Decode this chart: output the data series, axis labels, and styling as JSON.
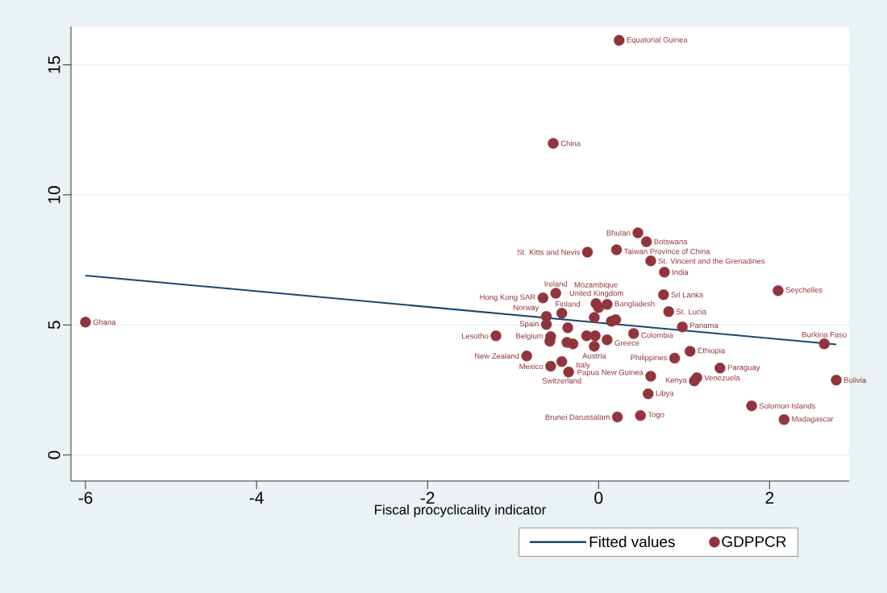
{
  "chart_data": {
    "type": "scatter",
    "xlabel": "Fiscal procyclicality indicator",
    "xlim": [
      -6.17,
      2.93
    ],
    "ylim": [
      -1,
      16.47
    ],
    "xticks": [
      -6,
      -4,
      -2,
      0,
      2
    ],
    "yticks": [
      0,
      5,
      10,
      15
    ],
    "grid": "y",
    "legend": "bottom",
    "series": [
      {
        "name": "Fitted values",
        "type": "line",
        "color": "#1a476f",
        "x": [
          -6.0,
          2.78
        ],
        "values": [
          6.9,
          4.25
        ]
      },
      {
        "name": "GDPPCR",
        "marker": "circle",
        "color": "#90353b",
        "x": [
          0.24,
          -0.53,
          -6.0,
          0.46,
          0.56,
          0.21,
          -0.13,
          0.61,
          0.77,
          2.1,
          0.76,
          -0.5,
          -0.65,
          -0.03,
          0.1,
          0.0,
          0.82,
          -0.43,
          -0.61,
          -0.61,
          -0.05,
          0.15,
          0.2,
          -0.36,
          0.98,
          2.64,
          -1.2,
          -0.56,
          0.41,
          -0.14,
          -0.04,
          0.1,
          -0.57,
          -0.37,
          -0.3,
          -0.05,
          1.07,
          -0.84,
          0.89,
          -0.43,
          -0.56,
          -0.35,
          1.42,
          0.61,
          1.15,
          1.12,
          2.78,
          0.58,
          1.79,
          0.49,
          0.22,
          2.17
        ],
        "values": [
          15.94,
          11.98,
          5.11,
          8.54,
          8.2,
          7.89,
          7.8,
          7.46,
          7.03,
          6.32,
          6.16,
          6.22,
          6.04,
          5.82,
          5.79,
          5.67,
          5.51,
          5.45,
          5.33,
          5.02,
          5.29,
          5.14,
          5.2,
          4.89,
          4.92,
          4.27,
          4.58,
          4.55,
          4.67,
          4.58,
          4.58,
          4.43,
          4.37,
          4.33,
          4.27,
          4.18,
          3.99,
          3.81,
          3.72,
          3.59,
          3.41,
          3.19,
          3.34,
          3.03,
          2.97,
          2.85,
          2.88,
          2.35,
          1.89,
          1.52,
          1.46,
          1.36
        ]
      }
    ],
    "annotations": [
      {
        "text": "Equatorial Guinea",
        "x": 0.24,
        "y": 15.94
      },
      {
        "text": "China",
        "x": -0.53,
        "y": 11.98
      },
      {
        "text": "Ghana",
        "x": -6.0,
        "y": 5.11
      },
      {
        "text": "Bhutan",
        "x": 0.46,
        "y": 8.54
      },
      {
        "text": "Botswana",
        "x": 0.56,
        "y": 8.2
      },
      {
        "text": "Taiwan Province of China",
        "x": 0.21,
        "y": 7.89
      },
      {
        "text": "St. Kitts and Nevis",
        "x": -0.13,
        "y": 7.8
      },
      {
        "text": "St. Vincent and the Grenadines",
        "x": 0.61,
        "y": 7.46
      },
      {
        "text": "India",
        "x": 0.77,
        "y": 7.03
      },
      {
        "text": "Seychelles",
        "x": 2.1,
        "y": 6.32
      },
      {
        "text": "Sri Lanka",
        "x": 0.76,
        "y": 6.16
      },
      {
        "text": "Ireland",
        "x": -0.5,
        "y": 6.22
      },
      {
        "text": "Hong Kong SAR",
        "x": -0.65,
        "y": 6.04
      },
      {
        "text": "Mozambique",
        "x": -0.03,
        "y": 5.82
      },
      {
        "text": "Bangladesh",
        "x": 0.1,
        "y": 5.79
      },
      {
        "text": "St. Lucia",
        "x": 0.82,
        "y": 5.51
      },
      {
        "text": "United Kingdom",
        "x": -0.43,
        "y": 5.45
      },
      {
        "text": "Norway",
        "x": -0.61,
        "y": 5.33
      },
      {
        "text": "Spain",
        "x": -0.61,
        "y": 5.02
      },
      {
        "text": "Finland",
        "x": -0.36,
        "y": 4.89
      },
      {
        "text": "Panama",
        "x": 0.98,
        "y": 4.92
      },
      {
        "text": "Burkina Faso",
        "x": 2.64,
        "y": 4.27
      },
      {
        "text": "Lesotho",
        "x": -1.2,
        "y": 4.58
      },
      {
        "text": "Belgium",
        "x": -0.56,
        "y": 4.55
      },
      {
        "text": "Colombia",
        "x": 0.41,
        "y": 4.67
      },
      {
        "text": "Greece",
        "x": 0.1,
        "y": 4.43
      },
      {
        "text": "Austria",
        "x": -0.05,
        "y": 4.18
      },
      {
        "text": "Ethiopia",
        "x": 1.07,
        "y": 3.99
      },
      {
        "text": "New Zealand",
        "x": -0.84,
        "y": 3.81
      },
      {
        "text": "Philippines",
        "x": 0.89,
        "y": 3.72
      },
      {
        "text": "Switzerland",
        "x": -0.43,
        "y": 3.59
      },
      {
        "text": "Mexico",
        "x": -0.56,
        "y": 3.41
      },
      {
        "text": "Italy",
        "x": -0.35,
        "y": 3.19
      },
      {
        "text": "Paraguay",
        "x": 1.42,
        "y": 3.34
      },
      {
        "text": "Papua New Guinea",
        "x": 0.61,
        "y": 3.03
      },
      {
        "text": "Venezuela",
        "x": 1.15,
        "y": 2.97
      },
      {
        "text": "Kenya",
        "x": 1.12,
        "y": 2.85
      },
      {
        "text": "Bolivia",
        "x": 2.78,
        "y": 2.88
      },
      {
        "text": "Libya",
        "x": 0.58,
        "y": 2.35
      },
      {
        "text": "Solomon Islands",
        "x": 1.79,
        "y": 1.89
      },
      {
        "text": "Togo",
        "x": 0.49,
        "y": 1.52
      },
      {
        "text": "Brunei Darussalam",
        "x": 0.22,
        "y": 1.46
      },
      {
        "text": "Madagascar",
        "x": 2.17,
        "y": 1.36
      }
    ]
  }
}
